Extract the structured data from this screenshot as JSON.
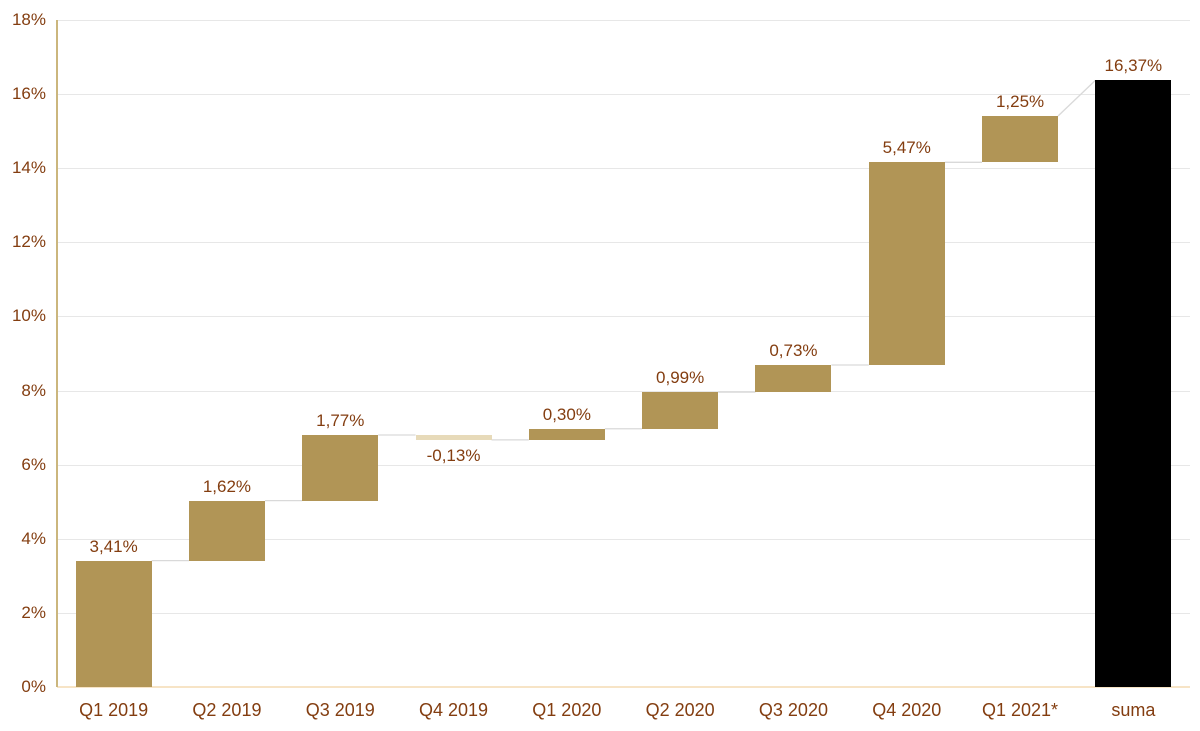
{
  "chart_data": {
    "type": "waterfall",
    "title": "",
    "xlabel": "",
    "ylabel": "",
    "categories": [
      "Q1 2019",
      "Q2 2019",
      "Q3 2019",
      "Q4 2019",
      "Q1 2020",
      "Q2 2020",
      "Q3 2020",
      "Q4 2020",
      "Q1 2021*",
      "suma"
    ],
    "values": [
      3.41,
      1.62,
      1.77,
      -0.13,
      0.3,
      0.99,
      0.73,
      5.47,
      1.25,
      16.37
    ],
    "bar_roles": [
      "delta",
      "delta",
      "delta",
      "delta",
      "delta",
      "delta",
      "delta",
      "delta",
      "delta",
      "total"
    ],
    "data_labels": [
      "3,41%",
      "1,62%",
      "1,77%",
      "-0,13%",
      "0,30%",
      "0,99%",
      "0,73%",
      "5,47%",
      "1,25%",
      "16,37%"
    ],
    "y_axis": {
      "min": 0,
      "max": 18,
      "step": 2,
      "tick_labels": [
        "0%",
        "2%",
        "4%",
        "6%",
        "8%",
        "10%",
        "12%",
        "14%",
        "16%",
        "18%"
      ]
    },
    "grid": true,
    "legend": false,
    "connectors": true,
    "colors": {
      "positive_bar": "#B19556",
      "negative_bar": "#E7DAB9",
      "total_bar": "#000000",
      "label_text": "#833D10",
      "axis_text": "#833D10",
      "gridline": "#E7E7E7",
      "y_axis_line": "#CBB67D",
      "zero_line": "#F7E4C6",
      "connector_line": "#D9D9D9",
      "background": "#FFFFFF"
    }
  }
}
